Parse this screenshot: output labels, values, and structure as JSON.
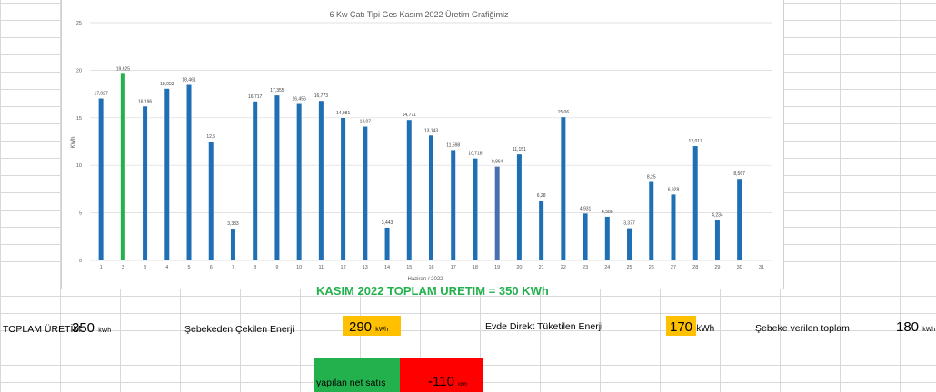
{
  "chart_data": {
    "type": "bar",
    "title": "6 Kw Çatı Tipi Ges Kasım 2022 Üretim Grafiğimiz",
    "xlabel": "Haziran  / 2022",
    "ylabel": "KWh",
    "ylim": [
      0,
      25
    ],
    "yticks": [
      "0",
      "5",
      "10",
      "15",
      "20",
      "25"
    ],
    "grid": true,
    "categories": [
      "1",
      "3",
      "3",
      "4",
      "5",
      "6",
      "7",
      "8",
      "9",
      "10",
      "11",
      "12",
      "13",
      "14",
      "15",
      "16",
      "17",
      "18",
      "19",
      "20",
      "21",
      "22",
      "23",
      "24",
      "25",
      "26",
      "27",
      "28",
      "29",
      "30",
      "31"
    ],
    "values": [
      17.027,
      19.625,
      16.196,
      18.053,
      18.461,
      12.5,
      3.333,
      16.717,
      17.355,
      16.456,
      16.773,
      14.981,
      14.07,
      3.443,
      14.771,
      13.143,
      11.598,
      10.718,
      9.864,
      11.151,
      6.28,
      15.06,
      4.931,
      4.586,
      3.377,
      8.25,
      6.928,
      12.017,
      4.234,
      8.567,
      null
    ],
    "value_labels": [
      "17,027",
      "19,625",
      "16,196",
      "18,053",
      "18,461",
      "12,5",
      "3,333",
      "16,717",
      "17,355",
      "16,456",
      "16,773",
      "14,981",
      "14,07",
      "3,443",
      "14,771",
      "13,143",
      "11,598",
      "10,718",
      "9,864",
      "11,151",
      "6,28",
      "15,06",
      "4,931",
      "4,586",
      "3,377",
      "8,25",
      "6,928",
      "12,017",
      "4,234",
      "8,567",
      ""
    ],
    "colors": {
      "default": "#1f6fb4",
      "max": "#22b14c",
      "highlight": "#4a6fb0"
    },
    "max_index": 1,
    "highlight_index": 18
  },
  "summary": {
    "banner": "KASIM 2022 TOPLAM URETIM = 350 KWh",
    "total_label": "TOPLAM ÜRETİM",
    "total_value": "350",
    "total_unit": "kWh",
    "grid_draw_label": "Şebekeden Çekilen Enerji",
    "grid_draw_value": "290",
    "grid_draw_unit": "kWh",
    "direct_label": "Evde Direkt Tüketilen Enerji",
    "direct_value": "170",
    "direct_unit": "kWh",
    "fed_label": "Şebeke verilen toplam",
    "fed_value": "180",
    "fed_unit": "kWh",
    "net_label": "yapılan net satış",
    "net_value": "-110",
    "net_unit": "kWh"
  },
  "colors": {
    "accent_yellow": "#ffc000",
    "green": "#22b14c",
    "red": "#ff0000"
  }
}
